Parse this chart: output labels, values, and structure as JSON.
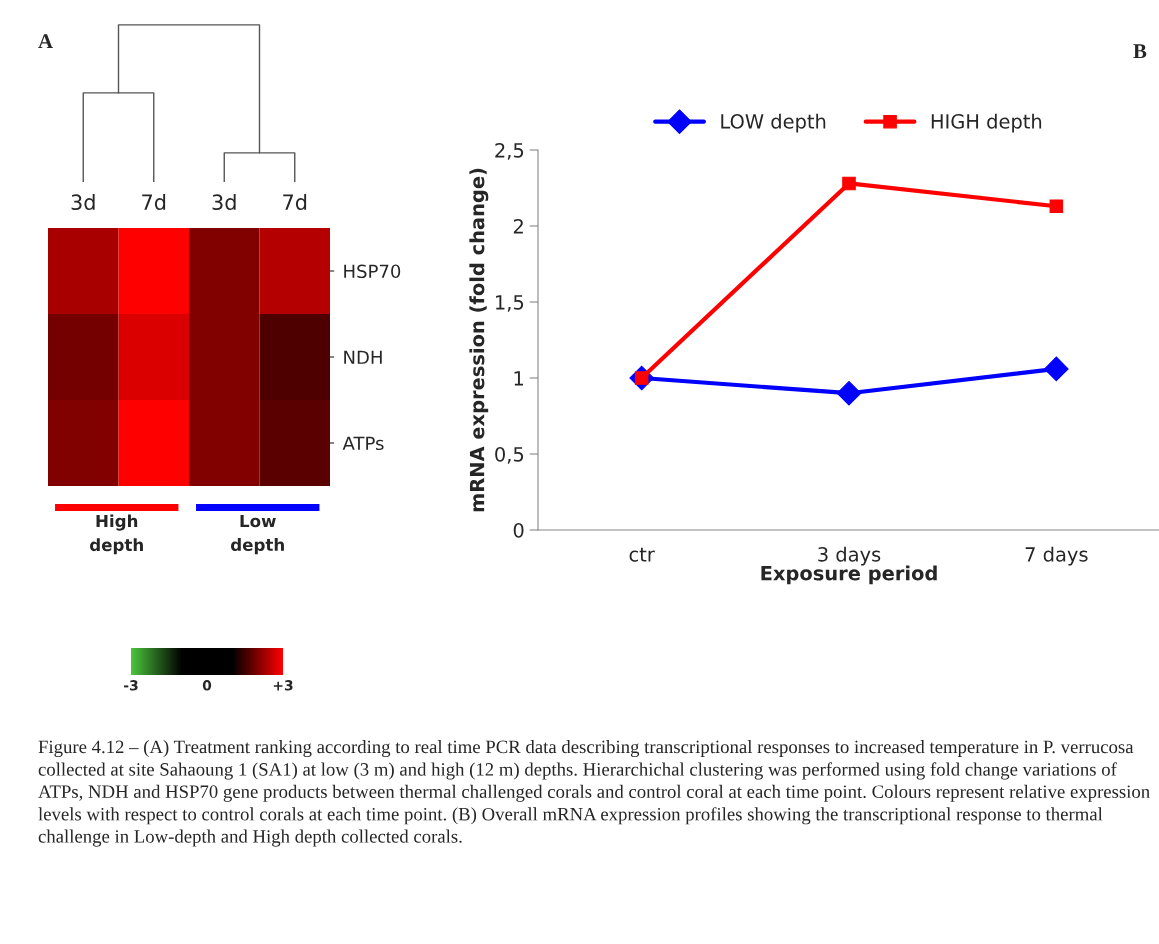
{
  "chart_data": [
    {
      "type": "heatmap",
      "categories": [
        "3d",
        "7d",
        "3d",
        "7d"
      ],
      "y_categories": [
        "HSP70",
        "NDH",
        "ATPs"
      ],
      "cells": [
        [
          2.3,
          3,
          2.0,
          2.4
        ],
        [
          1.9,
          2.7,
          2.0,
          1.6
        ],
        [
          2.0,
          3,
          2.0,
          1.7
        ]
      ],
      "clim": [
        -3,
        3
      ],
      "cticks": [
        -3,
        0,
        {
          "value": 3,
          "label": "+3"
        }
      ],
      "annotations": [
        "A",
        "High depth",
        "Low depth"
      ]
    },
    {
      "type": "line",
      "categories": [
        "ctr",
        "3 days",
        "7 days"
      ],
      "xlabel": "Exposure period",
      "ylabel": "mRNA expression (fold change)",
      "series": [
        {
          "name": "LOW depth",
          "color": "#0000ff",
          "marker": "diamond",
          "values": [
            1,
            0.9,
            1.06
          ]
        },
        {
          "name": "HIGH depth",
          "color": "#ff0000",
          "marker": "square",
          "values": [
            1,
            2.28,
            2.13
          ]
        }
      ],
      "ylim": [
        0,
        2.5
      ],
      "yticks": [
        0,
        {
          "value": 0.5,
          "label": "0,5"
        },
        1,
        {
          "value": 1.5,
          "label": "1,5"
        },
        2,
        {
          "value": 2.5,
          "label": "2,5"
        }
      ],
      "grid": false,
      "legend": "top",
      "line_style": "solid",
      "annotations": [
        "B",
        "Figure 4.12 – (A) Treatment ranking according to real time PCR data describing transcriptional responses to increased temperature in P. verrucosa collected at site Sahaoung 1 (SA1) at low (3 m) and high (12 m) depths. Hierarchichal clustering was performed using fold change variations of ATPs, NDH and HSP70 gene products between thermal challenged corals and control coral at each time point. Colours represent relative expression levels with respect to control corals at each time point. (B) Overall mRNA expression profiles showing the transcriptional response to thermal challenge in Low-depth and High depth collected corals."
      ]
    }
  ]
}
